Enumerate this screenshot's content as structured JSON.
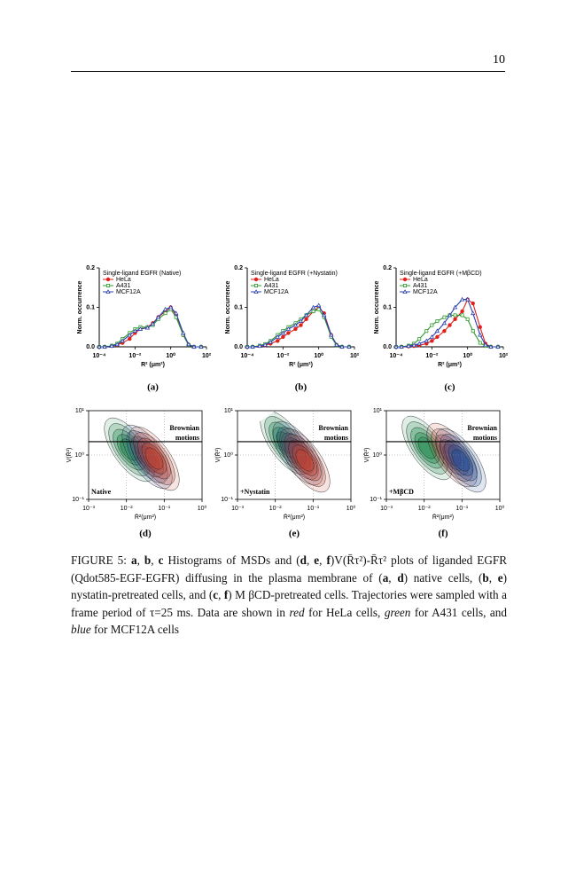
{
  "page_number": "10",
  "chart_data": [
    {
      "type": "line",
      "panel_label": "(a)",
      "legend_title": "Single-ligand EGFR (Native)",
      "legend": "upper left",
      "y_label": "Norm. occurrence",
      "x_label": "R² (μm²)",
      "log_x": true,
      "x": [
        0.0001,
        0.0002,
        0.0005,
        0.001,
        0.002,
        0.005,
        0.01,
        0.02,
        0.05,
        0.1,
        0.2,
        0.5,
        1,
        2,
        5,
        10,
        20,
        50
      ],
      "xlim": [
        0.0001,
        100
      ],
      "xticks": [
        {
          "value": 0.0001,
          "label": "10⁻⁴"
        },
        {
          "value": 0.01,
          "label": "10⁻²"
        },
        {
          "value": 1,
          "label": "10⁰"
        },
        {
          "value": 100,
          "label": "10²"
        }
      ],
      "ylim": [
        0,
        0.2
      ],
      "yticks": [
        {
          "value": 0,
          "label": "0.0"
        },
        0.1,
        0.2
      ],
      "series": [
        {
          "name": "HeLa",
          "color": "#e0201b",
          "marker": "circle",
          "values": [
            0,
            0,
            0.002,
            0.005,
            0.01,
            0.02,
            0.035,
            0.045,
            0.05,
            0.06,
            0.075,
            0.09,
            0.1,
            0.08,
            0.03,
            0.005,
            0,
            0
          ]
        },
        {
          "name": "A431",
          "color": "#2e9a2e",
          "marker": "square",
          "values": [
            0,
            0,
            0.003,
            0.008,
            0.02,
            0.035,
            0.045,
            0.05,
            0.05,
            0.055,
            0.07,
            0.085,
            0.095,
            0.075,
            0.03,
            0.005,
            0,
            0
          ]
        },
        {
          "name": "MCF12A",
          "color": "#2a3fb0",
          "marker": "triangle",
          "values": [
            0,
            0,
            0.002,
            0.006,
            0.015,
            0.03,
            0.04,
            0.045,
            0.048,
            0.058,
            0.075,
            0.095,
            0.1,
            0.085,
            0.035,
            0.006,
            0,
            0
          ]
        }
      ]
    },
    {
      "type": "line",
      "panel_label": "(b)",
      "legend_title": "Single-ligand EGFR (+Nystatin)",
      "legend": "upper left",
      "y_label": "Norm. occurrence",
      "x_label": "R² (μm²)",
      "log_x": true,
      "x": [
        0.0001,
        0.0002,
        0.0005,
        0.001,
        0.002,
        0.005,
        0.01,
        0.02,
        0.05,
        0.1,
        0.2,
        0.5,
        1,
        2,
        5,
        10,
        20,
        50
      ],
      "xlim": [
        0.0001,
        100
      ],
      "xticks": [
        {
          "value": 0.0001,
          "label": "10⁻⁴"
        },
        {
          "value": 0.01,
          "label": "10⁻²"
        },
        {
          "value": 1,
          "label": "10⁰"
        },
        {
          "value": 100,
          "label": "10²"
        }
      ],
      "ylim": [
        0,
        0.2
      ],
      "yticks": [
        {
          "value": 0,
          "label": "0.0"
        },
        0.1,
        0.2
      ],
      "series": [
        {
          "name": "HeLa",
          "color": "#e0201b",
          "marker": "circle",
          "values": [
            0,
            0,
            0.002,
            0.004,
            0.008,
            0.015,
            0.025,
            0.035,
            0.045,
            0.055,
            0.07,
            0.09,
            0.1,
            0.085,
            0.03,
            0.005,
            0,
            0
          ]
        },
        {
          "name": "A431",
          "color": "#2e9a2e",
          "marker": "square",
          "values": [
            0,
            0,
            0.003,
            0.007,
            0.015,
            0.03,
            0.04,
            0.05,
            0.06,
            0.07,
            0.08,
            0.09,
            0.095,
            0.075,
            0.025,
            0.004,
            0,
            0
          ]
        },
        {
          "name": "MCF12A",
          "color": "#2a3fb0",
          "marker": "triangle",
          "values": [
            0,
            0,
            0.002,
            0.005,
            0.012,
            0.025,
            0.035,
            0.045,
            0.055,
            0.065,
            0.08,
            0.1,
            0.105,
            0.08,
            0.03,
            0.005,
            0,
            0
          ]
        }
      ]
    },
    {
      "type": "line",
      "panel_label": "(c)",
      "legend_title": "Single-ligand EGFR (+MβCD)",
      "legend": "upper left",
      "y_label": "Norm. occurrence",
      "x_label": "R² (μm²)",
      "log_x": true,
      "x": [
        0.0001,
        0.0002,
        0.0005,
        0.001,
        0.002,
        0.005,
        0.01,
        0.02,
        0.05,
        0.1,
        0.2,
        0.5,
        1,
        2,
        5,
        10,
        20,
        50
      ],
      "xlim": [
        0.0001,
        100
      ],
      "xticks": [
        {
          "value": 0.0001,
          "label": "10⁻⁴"
        },
        {
          "value": 0.01,
          "label": "10⁻²"
        },
        {
          "value": 1,
          "label": "10⁰"
        },
        {
          "value": 100,
          "label": "10²"
        }
      ],
      "ylim": [
        0,
        0.2
      ],
      "yticks": [
        {
          "value": 0,
          "label": "0.0"
        },
        0.1,
        0.2
      ],
      "series": [
        {
          "name": "HeLa",
          "color": "#e0201b",
          "marker": "circle",
          "values": [
            0,
            0,
            0.001,
            0.002,
            0.004,
            0.008,
            0.015,
            0.025,
            0.04,
            0.055,
            0.07,
            0.09,
            0.12,
            0.11,
            0.05,
            0.008,
            0,
            0
          ]
        },
        {
          "name": "A431",
          "color": "#2e9a2e",
          "marker": "square",
          "values": [
            0,
            0,
            0.003,
            0.008,
            0.02,
            0.04,
            0.055,
            0.065,
            0.075,
            0.08,
            0.08,
            0.08,
            0.07,
            0.04,
            0.01,
            0.002,
            0,
            0
          ]
        },
        {
          "name": "MCF12A",
          "color": "#2a3fb0",
          "marker": "triangle",
          "values": [
            0,
            0,
            0.002,
            0.004,
            0.008,
            0.015,
            0.025,
            0.04,
            0.06,
            0.08,
            0.1,
            0.12,
            0.12,
            0.085,
            0.03,
            0.005,
            0,
            0
          ]
        }
      ]
    },
    {
      "type": "contour",
      "panel_label": "(d)",
      "annotation": "Native",
      "region_label": [
        "Brownian",
        "motions"
      ],
      "y_label": "V(R̄²)",
      "x_label": "R̄²(μm²)",
      "log_x": true,
      "log_y": true,
      "hline": 2,
      "colors": [
        "#1f8a4c",
        "#c8402a",
        "#1d4f9a"
      ],
      "xlim": [
        0.001,
        1
      ],
      "xticks": [
        {
          "value": 0.001,
          "label": "10⁻³"
        },
        {
          "value": 0.01,
          "label": "10⁻²"
        },
        {
          "value": 0.1,
          "label": "10⁻¹"
        },
        {
          "value": 1,
          "label": "10⁰"
        }
      ],
      "ylim": [
        0.1,
        10
      ],
      "yticks": [
        {
          "value": 0.1,
          "label": "10⁻¹"
        },
        {
          "value": 1,
          "label": "10⁰"
        },
        {
          "value": 10,
          "label": "10¹"
        }
      ]
    },
    {
      "type": "contour",
      "panel_label": "(e)",
      "annotation": "+Nystatin",
      "region_label": [
        "Brownian",
        "motions"
      ],
      "y_label": "V(R̄²)",
      "x_label": "R̄²(μm²)",
      "log_x": true,
      "log_y": true,
      "hline": 2,
      "colors": [
        "#1f8a4c",
        "#c8402a",
        "#1d4f9a"
      ],
      "xlim": [
        0.001,
        1
      ],
      "xticks": [
        {
          "value": 0.001,
          "label": "10⁻³"
        },
        {
          "value": 0.01,
          "label": "10⁻²"
        },
        {
          "value": 0.1,
          "label": "10⁻¹"
        },
        {
          "value": 1,
          "label": "10⁰"
        }
      ],
      "ylim": [
        0.1,
        10
      ],
      "yticks": [
        {
          "value": 0.1,
          "label": "10⁻¹"
        },
        {
          "value": 1,
          "label": "10⁰"
        },
        {
          "value": 10,
          "label": "10¹"
        }
      ]
    },
    {
      "type": "contour",
      "panel_label": "(f)",
      "annotation": "+MβCD",
      "region_label": [
        "Brownian",
        "motions"
      ],
      "y_label": "V(R̄²)",
      "x_label": "R̄²(μm²)",
      "log_x": true,
      "log_y": true,
      "hline": 2,
      "colors": [
        "#1f8a4c",
        "#c8402a",
        "#1d4f9a"
      ],
      "xlim": [
        0.001,
        1
      ],
      "xticks": [
        {
          "value": 0.001,
          "label": "10⁻³"
        },
        {
          "value": 0.01,
          "label": "10⁻²"
        },
        {
          "value": 0.1,
          "label": "10⁻¹"
        },
        {
          "value": 1,
          "label": "10⁰"
        }
      ],
      "ylim": [
        0.1,
        10
      ],
      "yticks": [
        {
          "value": 0.1,
          "label": "10⁻¹"
        },
        {
          "value": 1,
          "label": "10⁰"
        },
        {
          "value": 10,
          "label": "10¹"
        }
      ]
    }
  ],
  "caption": [
    "FIGURE 5: ",
    "a",
    ", ",
    "b",
    ", ",
    "c",
    " Histograms of MSDs and (",
    "d",
    ", ",
    "e",
    ", ",
    "f",
    ")V(R̄τ²)-R̄τ² plots of liganded EGFR (Qdot585-EGF-EGFR) diffusing in the plasma membrane of (",
    "a",
    ", ",
    "d",
    ") native cells, (",
    "b",
    ", ",
    "e",
    ") nystatin-pretreated cells, and (",
    "c",
    ", ",
    "f",
    ") M βCD-pretreated cells.  Trajectories were sampled with a frame period of τ=25 ms.  Data are shown in ",
    "red",
    " for HeLa cells, ",
    "green",
    " for A431 cells, and ",
    "blue",
    " for MCF12A cells"
  ]
}
